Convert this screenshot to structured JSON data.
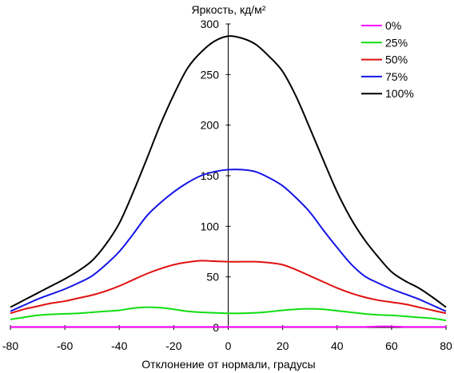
{
  "chart_data": {
    "type": "line",
    "ylabel": "Яркость, кд/м²",
    "xlabel": "Отклонение от нормали, градусы",
    "xlim": [
      -80,
      80
    ],
    "ylim": [
      0,
      300
    ],
    "xticks": [
      -80,
      -60,
      -40,
      -20,
      0,
      20,
      40,
      60,
      80
    ],
    "yticks": [
      0,
      50,
      100,
      150,
      200,
      250,
      300
    ],
    "grid": false,
    "legend": "top-right",
    "x": [
      -80,
      -75,
      -70,
      -65,
      -60,
      -55,
      -50,
      -45,
      -40,
      -35,
      -30,
      -25,
      -20,
      -15,
      -10,
      -5,
      0,
      5,
      10,
      15,
      20,
      25,
      30,
      35,
      40,
      45,
      50,
      55,
      60,
      65,
      70,
      75,
      80
    ],
    "series": [
      {
        "name": "0%",
        "color": "#ff00ff",
        "values": [
          0.5,
          0.5,
          0.5,
          0.5,
          0.5,
          0.5,
          0.5,
          0.5,
          0.5,
          0.5,
          0.5,
          0.5,
          0.5,
          0.5,
          0.5,
          0.5,
          0.5,
          0.5,
          0.5,
          0.5,
          0.5,
          0.5,
          0.5,
          0.5,
          0.5,
          0.5,
          0.5,
          1,
          1,
          0.5,
          0.5,
          0.5,
          0.5
        ]
      },
      {
        "name": "25%",
        "color": "#11dd11",
        "values": [
          8,
          10,
          12,
          13,
          13.5,
          14,
          15,
          16,
          17,
          19,
          20,
          19.5,
          18,
          16,
          15,
          14.5,
          14,
          14,
          14.5,
          15.5,
          17,
          18,
          18.5,
          18,
          16.5,
          15,
          13.5,
          12.5,
          12,
          11,
          10,
          9,
          7
        ]
      },
      {
        "name": "50%",
        "color": "#e01010",
        "values": [
          14,
          18,
          21,
          24,
          26,
          29,
          32,
          36,
          41,
          47,
          53,
          58,
          62,
          64.5,
          66,
          65.5,
          65,
          65,
          65,
          64,
          62,
          57,
          51,
          45,
          39,
          34,
          30,
          27,
          25,
          23,
          20,
          17,
          14
        ]
      },
      {
        "name": "75%",
        "color": "#1414e6",
        "values": [
          16,
          22,
          28,
          33,
          38,
          44,
          51,
          62,
          75,
          92,
          110,
          123,
          134,
          143,
          150,
          154,
          156,
          156,
          154,
          148,
          140,
          128,
          114,
          96,
          79,
          63,
          51,
          44,
          38,
          33,
          28,
          22,
          16
        ]
      },
      {
        "name": "100%",
        "color": "#000000",
        "values": [
          20,
          27,
          34,
          41,
          48,
          56,
          66,
          82,
          103,
          133,
          166,
          200,
          230,
          256,
          272,
          283,
          288,
          286,
          280,
          268,
          253,
          228,
          197,
          165,
          134,
          108,
          87,
          70,
          55,
          46,
          39,
          30,
          20
        ]
      }
    ]
  }
}
